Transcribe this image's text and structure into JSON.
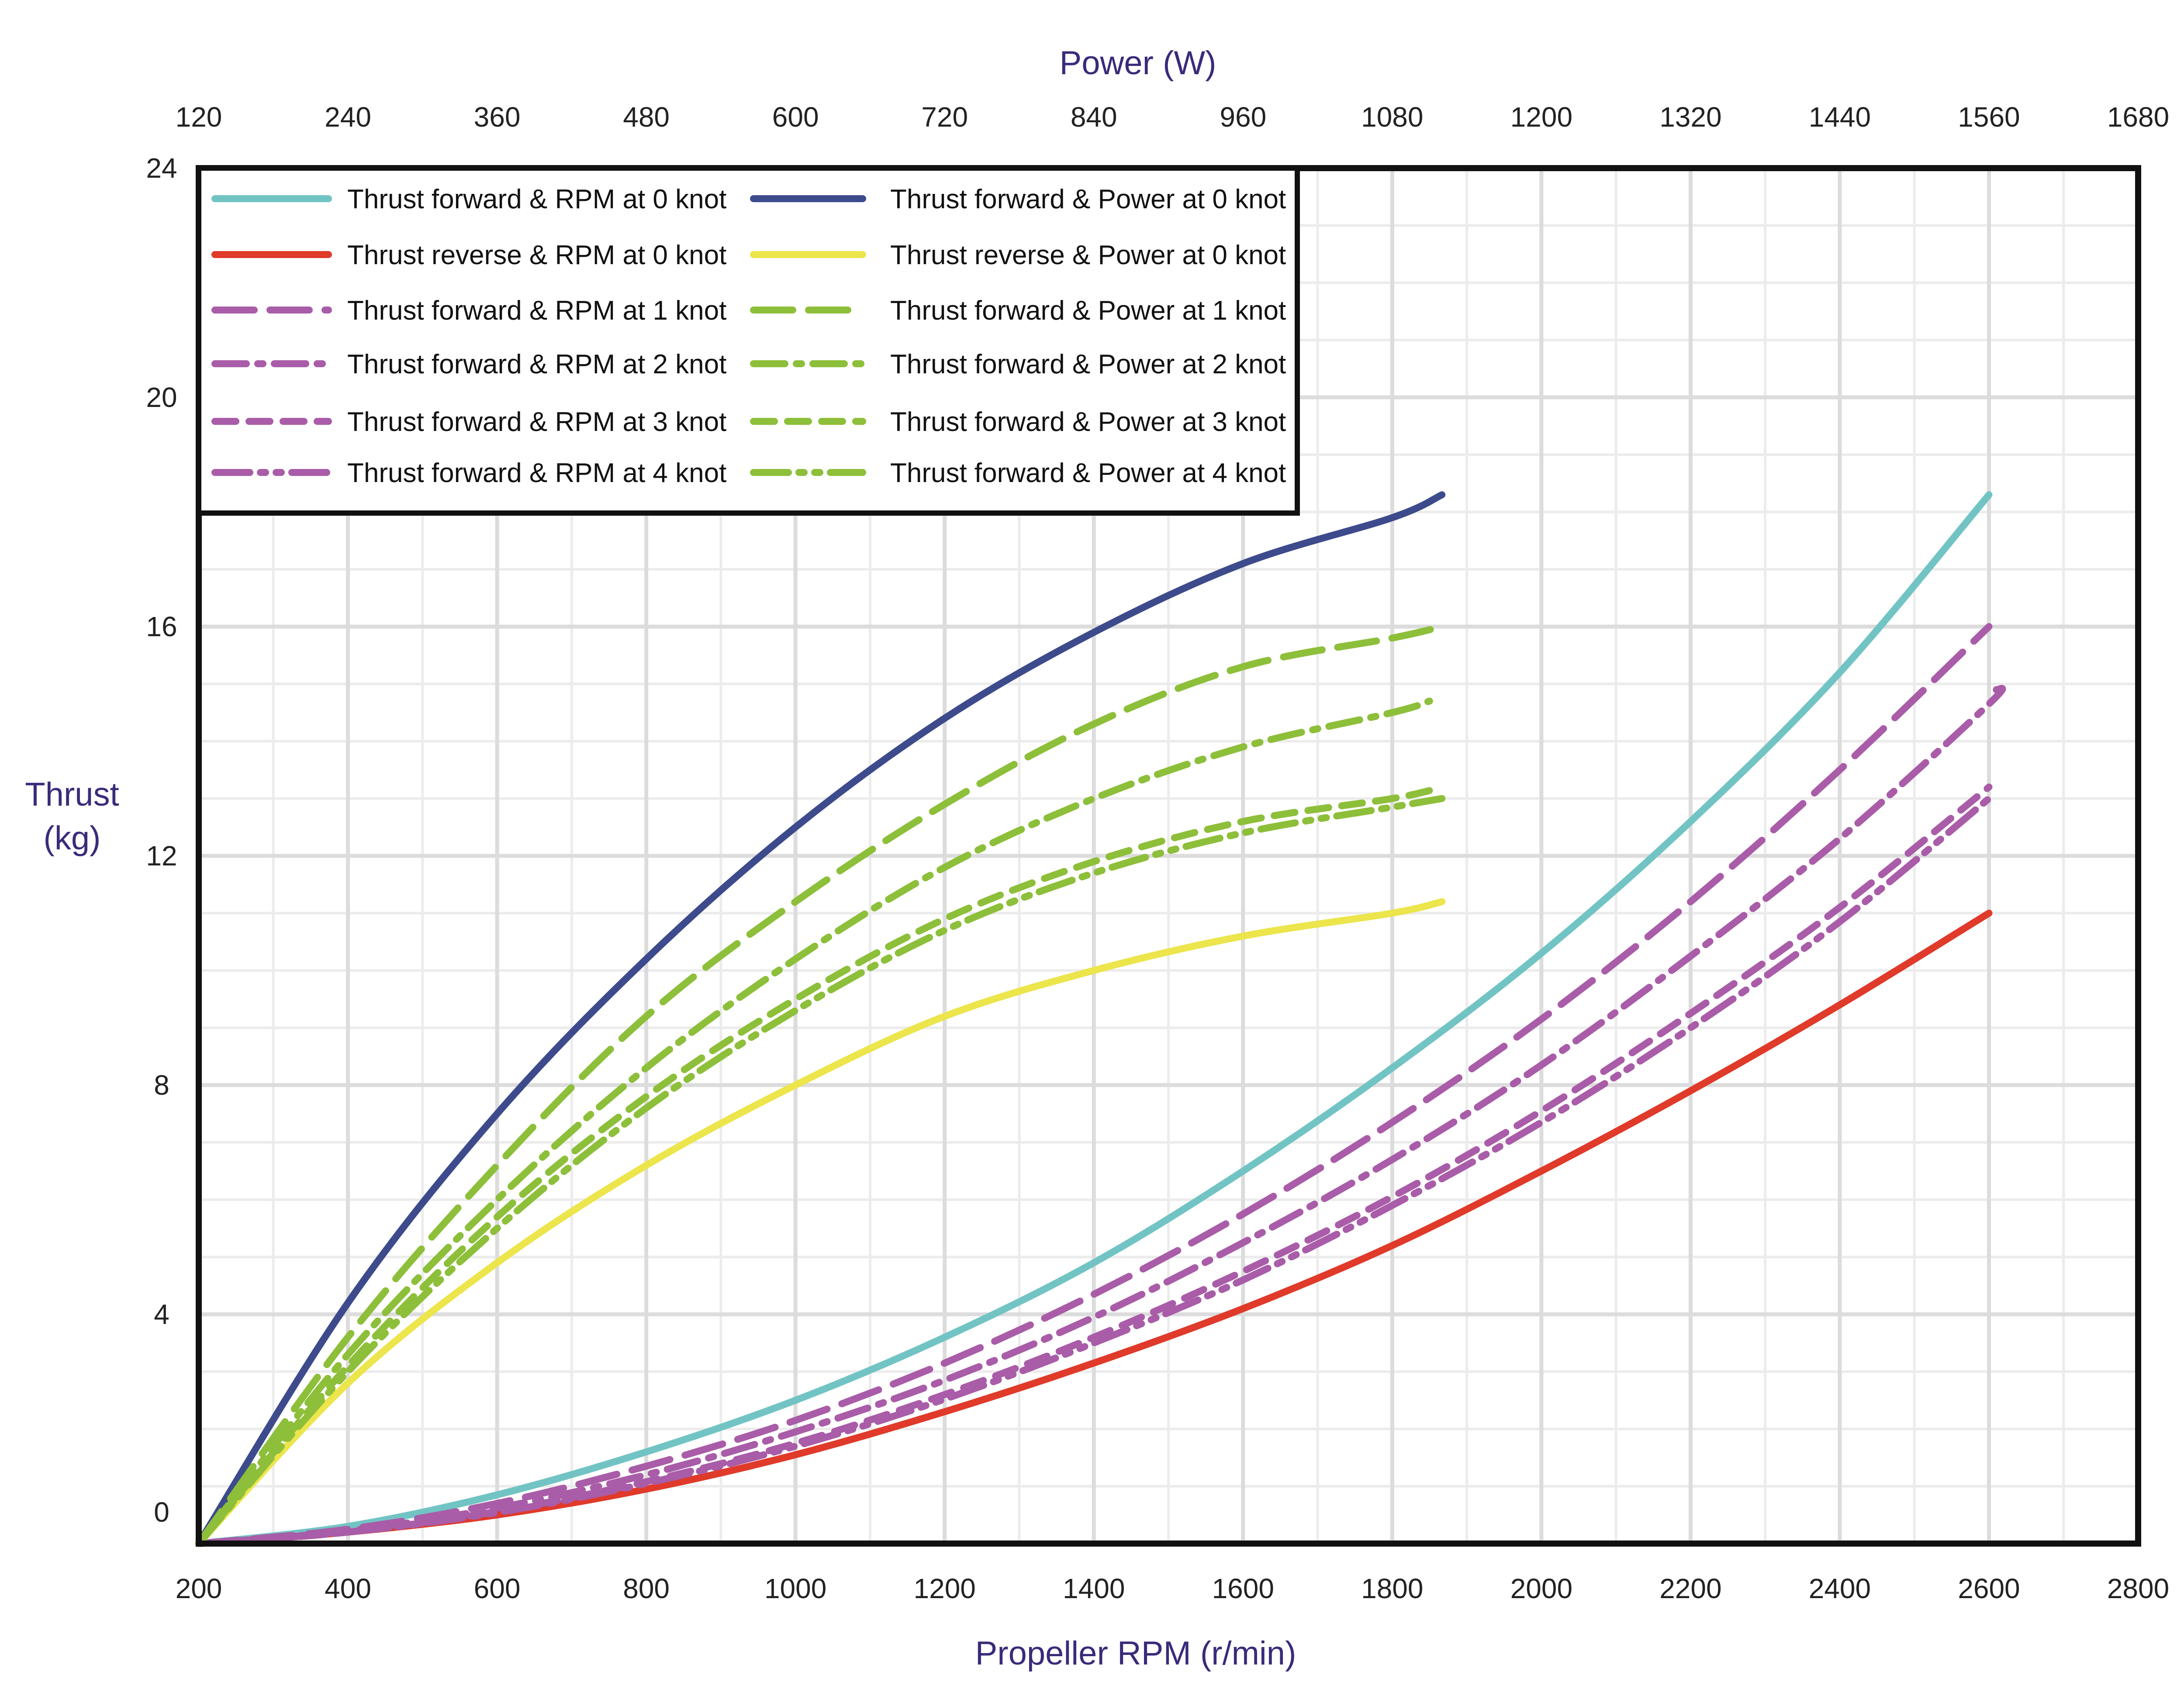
{
  "chart_data": {
    "type": "line",
    "title": "",
    "xlabel": "Propeller RPM (r/min)",
    "x2label": "Power (W)",
    "ylabel": "Thrust (kg)",
    "ylabel_lines": [
      "Thrust",
      "(kg)"
    ],
    "xlim": [
      200,
      2800
    ],
    "x2lim": [
      120,
      1680
    ],
    "ylim": [
      0,
      24
    ],
    "x_ticks": [
      "200",
      "400",
      "600",
      "800",
      "1000",
      "1200",
      "1400",
      "1600",
      "1800",
      "2000",
      "2200",
      "2400",
      "2600",
      "2800"
    ],
    "x2_ticks": [
      "120",
      "240",
      "360",
      "480",
      "600",
      "720",
      "840",
      "960",
      "1080",
      "1200",
      "1320",
      "1440",
      "1560",
      "1680"
    ],
    "y_ticks": [
      "0",
      "4",
      "8",
      "12",
      "16",
      "20",
      "24"
    ],
    "grid": true,
    "legend_position": "top-left",
    "series": [
      {
        "name": "Thrust forward &  RPM at 0 knot",
        "axis": "rpm",
        "color": "#72c4c4",
        "dash": "solid",
        "x": [
          200,
          400,
          600,
          800,
          1000,
          1200,
          1400,
          1600,
          1800,
          2000,
          2200,
          2400,
          2600
        ],
        "y": [
          0,
          0.3,
          0.85,
          1.6,
          2.5,
          3.6,
          4.9,
          6.5,
          8.3,
          10.3,
          12.6,
          15.2,
          18.3
        ]
      },
      {
        "name": "Thrust reverse  &  RPM at 0 knot",
        "axis": "rpm",
        "color": "#e03a2a",
        "dash": "solid",
        "x": [
          200,
          400,
          600,
          800,
          1000,
          1200,
          1400,
          1600,
          1800,
          2000,
          2200,
          2400,
          2600
        ],
        "y": [
          0,
          0.2,
          0.5,
          0.95,
          1.55,
          2.3,
          3.15,
          4.1,
          5.2,
          6.5,
          7.9,
          9.4,
          11.0
        ]
      },
      {
        "name": "Thrust forward &  RPM at 1 knot",
        "axis": "rpm",
        "color": "#a95ca8",
        "dash": "longdash",
        "x": [
          200,
          400,
          600,
          800,
          1000,
          1200,
          1400,
          1600,
          1800,
          2000,
          2200,
          2400,
          2600
        ],
        "y": [
          0,
          0.25,
          0.7,
          1.35,
          2.15,
          3.15,
          4.35,
          5.75,
          7.35,
          9.15,
          11.2,
          13.5,
          16.0
        ]
      },
      {
        "name": "Thrust forward &  RPM at 2 knot",
        "axis": "rpm",
        "color": "#a95ca8",
        "dash": "dashdot",
        "x": [
          200,
          400,
          600,
          800,
          1000,
          1200,
          1400,
          1600,
          1800,
          2000,
          2200,
          2400,
          2600,
          2610
        ],
        "y": [
          0,
          0.22,
          0.62,
          1.2,
          1.95,
          2.85,
          3.95,
          5.25,
          6.7,
          8.35,
          10.25,
          12.3,
          14.65,
          14.9
        ]
      },
      {
        "name": "Thrust forward &  RPM at 3 knot",
        "axis": "rpm",
        "color": "#a95ca8",
        "dash": "dashed",
        "x": [
          200,
          400,
          600,
          800,
          1000,
          1200,
          1400,
          1600,
          1800,
          2000,
          2200,
          2400,
          2600
        ],
        "y": [
          0,
          0.2,
          0.56,
          1.08,
          1.75,
          2.6,
          3.6,
          4.75,
          6.05,
          7.55,
          9.25,
          11.1,
          13.2
        ]
      },
      {
        "name": "Thrust forward &  RPM at 4 knot",
        "axis": "rpm",
        "color": "#a95ca8",
        "dash": "dashdotdot",
        "x": [
          200,
          400,
          600,
          800,
          1000,
          1200,
          1400,
          1600,
          1800,
          2000,
          2200,
          2400,
          2600
        ],
        "y": [
          0,
          0.2,
          0.54,
          1.05,
          1.7,
          2.52,
          3.5,
          4.6,
          5.9,
          7.35,
          9.0,
          10.85,
          13.0
        ]
      },
      {
        "name": "Thrust forward & Power at 0 knot",
        "axis": "power",
        "color": "#3d4b8c",
        "dash": "solid",
        "x": [
          120,
          240,
          360,
          480,
          600,
          720,
          840,
          960,
          1080,
          1120
        ],
        "y": [
          0,
          4.2,
          7.5,
          10.2,
          12.5,
          14.4,
          15.9,
          17.1,
          17.9,
          18.3
        ]
      },
      {
        "name": "Thrust reverse & Power at 0 knot",
        "axis": "power",
        "color": "#ece54c",
        "dash": "solid",
        "x": [
          120,
          240,
          360,
          480,
          600,
          720,
          840,
          960,
          1080,
          1120
        ],
        "y": [
          0,
          2.8,
          4.9,
          6.6,
          8.0,
          9.2,
          10.0,
          10.6,
          11.0,
          11.2
        ]
      },
      {
        "name": "Thrust forward & Power at 1 knot",
        "axis": "power",
        "color": "#8dbf3a",
        "dash": "longdash",
        "x": [
          120,
          240,
          360,
          480,
          600,
          720,
          840,
          960,
          1080,
          1120
        ],
        "y": [
          0,
          3.6,
          6.6,
          9.2,
          11.2,
          12.9,
          14.3,
          15.3,
          15.8,
          16.0
        ]
      },
      {
        "name": "Thrust forward & Power at 2 knot",
        "axis": "power",
        "color": "#8dbf3a",
        "dash": "dashdot",
        "x": [
          120,
          240,
          360,
          480,
          600,
          720,
          840,
          960,
          1080,
          1110
        ],
        "y": [
          0,
          3.3,
          6.0,
          8.3,
          10.2,
          11.8,
          13.0,
          13.9,
          14.5,
          14.7
        ]
      },
      {
        "name": "Thrust forward & Power at 3 knot",
        "axis": "power",
        "color": "#8dbf3a",
        "dash": "dashed",
        "x": [
          120,
          240,
          360,
          480,
          600,
          720,
          840,
          960,
          1080,
          1120
        ],
        "y": [
          0,
          3.1,
          5.7,
          7.8,
          9.5,
          10.9,
          11.9,
          12.6,
          13.0,
          13.2
        ]
      },
      {
        "name": "Thrust forward & Power at 4 knot",
        "axis": "power",
        "color": "#8dbf3a",
        "dash": "dashdotdot",
        "x": [
          120,
          240,
          360,
          480,
          600,
          720,
          840,
          960,
          1080,
          1120
        ],
        "y": [
          0,
          3.0,
          5.5,
          7.6,
          9.3,
          10.7,
          11.7,
          12.4,
          12.85,
          13.0
        ]
      }
    ]
  }
}
